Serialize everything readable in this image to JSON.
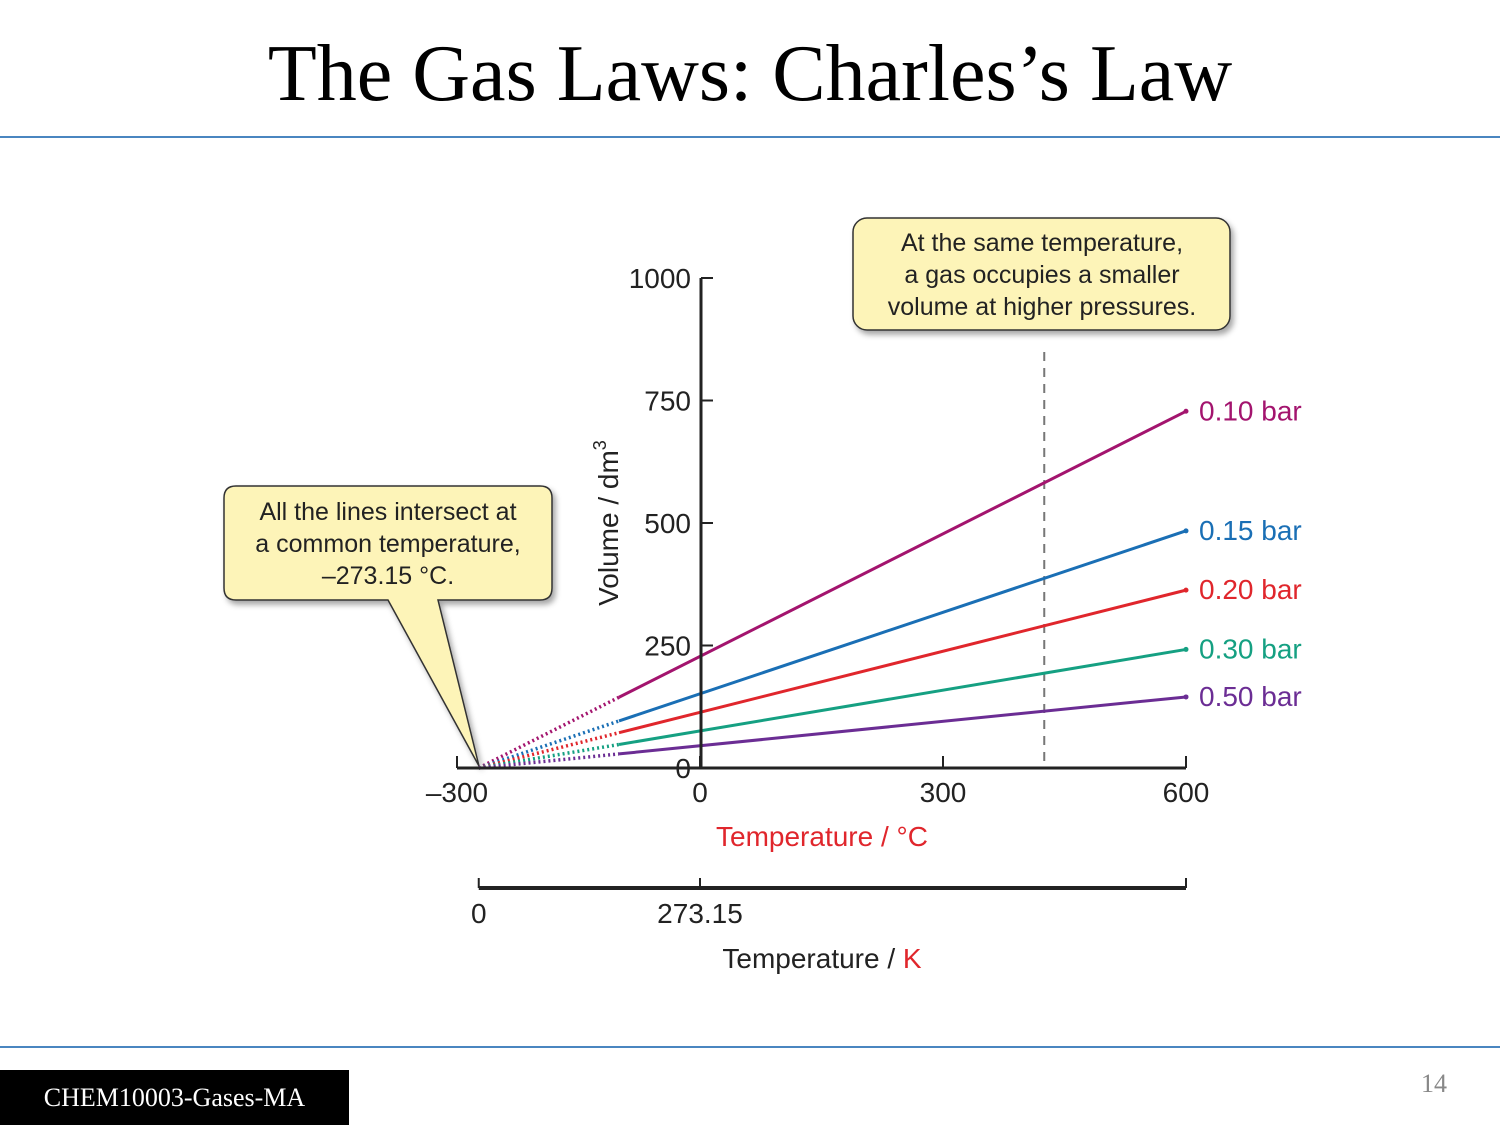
{
  "slide": {
    "title": "The Gas Laws: Charles’s Law",
    "footer": "CHEM10003-Gases-MA",
    "page_number": "14"
  },
  "chart_data": {
    "type": "line",
    "x": [
      -273.15,
      600
    ],
    "series": [
      {
        "name": "0.10 bar",
        "color": "#a3146e",
        "values": [
          0,
          728
        ]
      },
      {
        "name": "0.15 bar",
        "color": "#1a6fb5",
        "values": [
          0,
          484
        ]
      },
      {
        "name": "0.20 bar",
        "color": "#e0262c",
        "values": [
          0,
          363
        ]
      },
      {
        "name": "0.30 bar",
        "color": "#15a082",
        "values": [
          0,
          242
        ]
      },
      {
        "name": "0.50 bar",
        "color": "#6b2d94",
        "values": [
          0,
          145
        ]
      }
    ],
    "extrapolated_below_x": -100,
    "xlabel": "Temperature / °C",
    "ylabel": "Volume / dm3",
    "x2label": "Temperature / K",
    "xlim": [
      -300,
      600
    ],
    "ylim": [
      0,
      1000
    ],
    "xticks": [
      -300,
      0,
      300,
      600
    ],
    "xtick_labels": [
      "–300",
      "0",
      "300",
      "600"
    ],
    "yticks": [
      0,
      250,
      500,
      750,
      1000
    ],
    "ytick_labels": [
      "0",
      "250",
      "500",
      "750",
      "1000"
    ],
    "x2_ticks": [
      {
        "celsius": -273.15,
        "label": "0"
      },
      {
        "celsius": 0,
        "label": "273.15"
      }
    ],
    "x2_extent_celsius": [
      -273.15,
      600
    ],
    "reference_line_x": 425,
    "colors": {
      "xlabel": "#e0262c",
      "x2unit": "#e0262c",
      "axis": "#222222",
      "callout_fill": "#fdf4b8"
    },
    "annotations": [
      {
        "id": "left",
        "lines": [
          "All the lines intersect at",
          "a common temperature,",
          "–273.15 °C."
        ]
      },
      {
        "id": "top",
        "lines": [
          "At the same temperature,",
          "a gas occupies a smaller",
          "volume at higher pressures."
        ]
      }
    ]
  }
}
